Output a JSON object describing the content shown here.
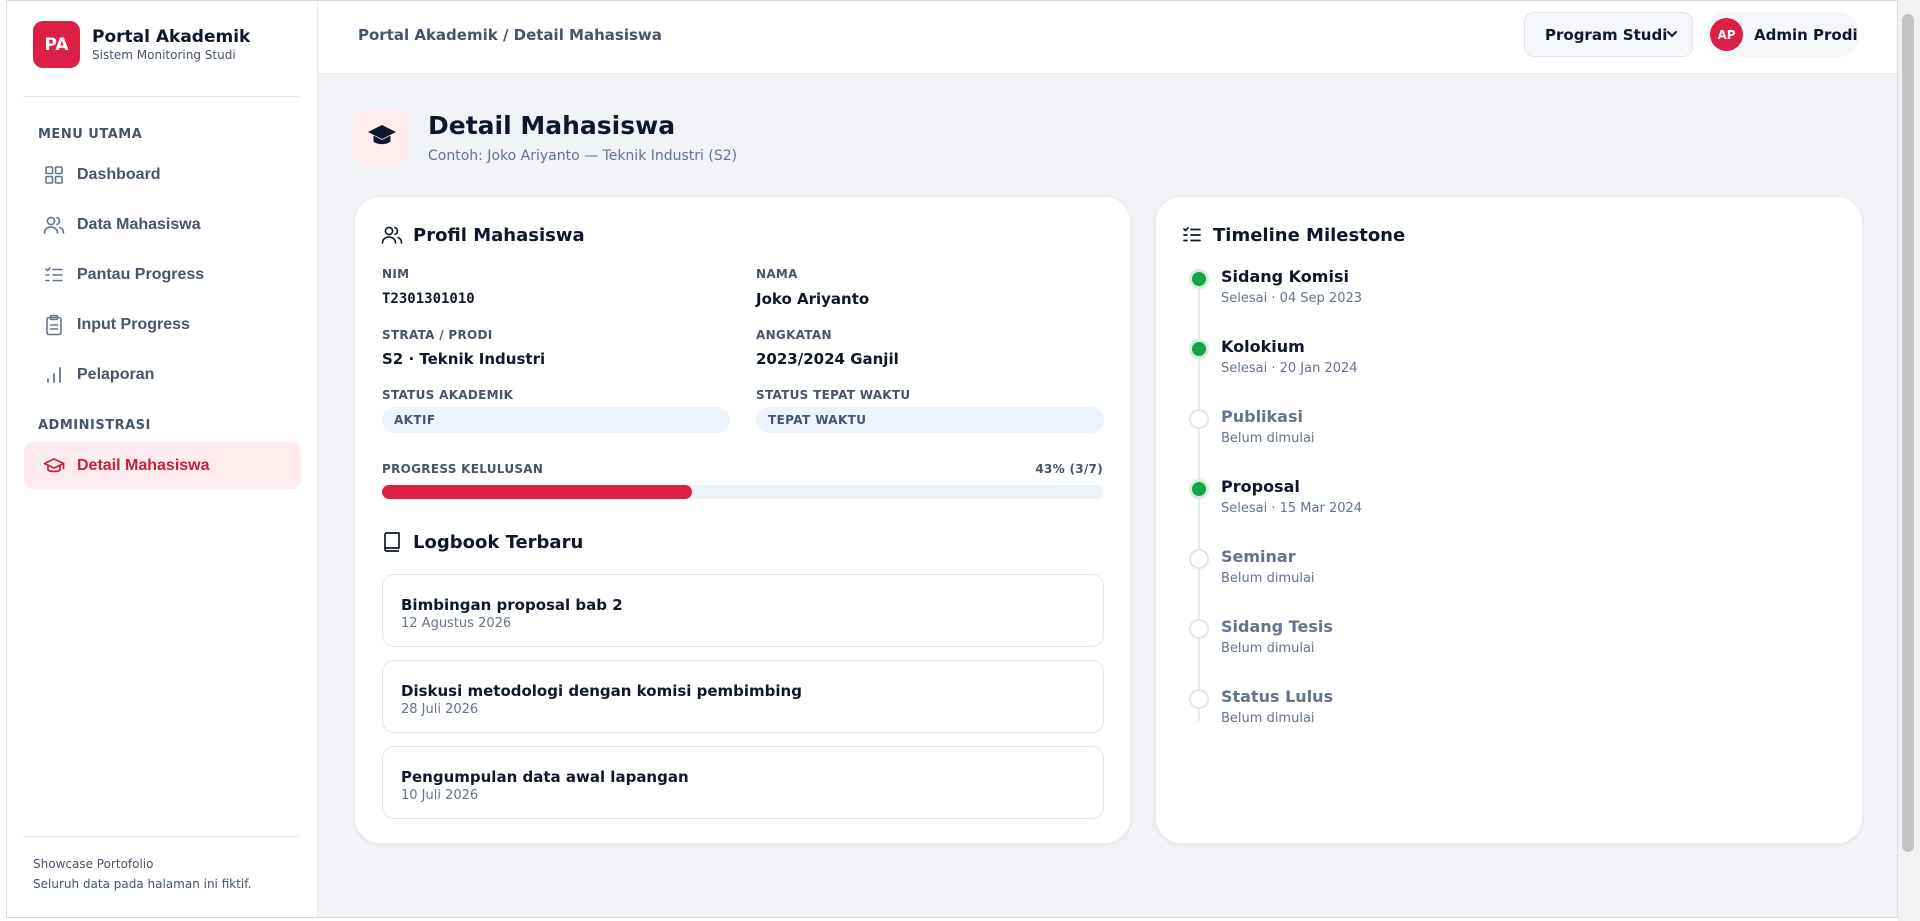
{
  "brand": {
    "logo_text": "PA",
    "title": "Portal Akademik",
    "subtitle": "Sistem Monitoring Studi",
    "color": "#dc2044"
  },
  "sidebar": {
    "section_main": "MENU UTAMA",
    "items": [
      {
        "label": "Dashboard",
        "icon": "grid-icon"
      },
      {
        "label": "Data Mahasiswa",
        "icon": "users-icon"
      },
      {
        "label": "Pantau Progress",
        "icon": "list-check-icon"
      },
      {
        "label": "Input Progress",
        "icon": "clipboard-icon"
      },
      {
        "label": "Pelaporan",
        "icon": "bar-chart-icon"
      }
    ],
    "section_admin": "ADMINISTRASI",
    "admin_items": [
      {
        "label": "Detail Mahasiswa",
        "icon": "graduation-cap-icon",
        "active": true
      }
    ],
    "footer": {
      "line1": "Showcase Portofolio",
      "line2": "Seluruh data pada halaman ini fiktif."
    }
  },
  "header": {
    "breadcrumb": "Portal Akademik / Detail Mahasiswa",
    "prodi_select": "Program Studi",
    "user": {
      "initials": "AP",
      "name": "Admin Prodi"
    }
  },
  "page": {
    "title": "Detail Mahasiswa",
    "subtitle": "Contoh: Joko Ariyanto — Teknik Industri (S2)"
  },
  "profile": {
    "heading": "Profil Mahasiswa",
    "nim_label": "NIM",
    "nim": "T2301301010",
    "nama_label": "NAMA",
    "nama": "Joko Ariyanto",
    "strata_label": "STRATA / PRODI",
    "strata": "S2 · Teknik Industri",
    "angkatan_label": "ANGKATAN",
    "angkatan": "2023/2024 Ganjil",
    "status_akademik_label": "STATUS AKADEMIK",
    "status_akademik": "AKTIF",
    "status_tepat_label": "STATUS TEPAT WAKTU",
    "status_tepat": "TEPAT WAKTU",
    "progress_label": "PROGRESS KELULUSAN",
    "progress_text": "43% (3/7)",
    "progress_value": 0.43
  },
  "logbook": {
    "heading": "Logbook Terbaru",
    "items": [
      {
        "title": "Bimbingan proposal bab 2",
        "date": "12 Agustus 2026"
      },
      {
        "title": "Diskusi metodologi dengan komisi pembimbing",
        "date": "28 Juli 2026"
      },
      {
        "title": "Pengumpulan data awal lapangan",
        "date": "10 Juli 2026"
      }
    ]
  },
  "timeline": {
    "heading": "Timeline Milestone",
    "items": [
      {
        "title": "Sidang Komisi",
        "sub": "Selesai · 04 Sep 2023",
        "done": true
      },
      {
        "title": "Kolokium",
        "sub": "Selesai · 20 Jan 2024",
        "done": true
      },
      {
        "title": "Publikasi",
        "sub": "Belum dimulai",
        "done": false
      },
      {
        "title": "Proposal",
        "sub": "Selesai · 15 Mar 2024",
        "done": true
      },
      {
        "title": "Seminar",
        "sub": "Belum dimulai",
        "done": false
      },
      {
        "title": "Sidang Tesis",
        "sub": "Belum dimulai",
        "done": false
      },
      {
        "title": "Status Lulus",
        "sub": "Belum dimulai",
        "done": false
      }
    ]
  },
  "colors": {
    "accent": "#dc2044",
    "done": "#16a34a"
  }
}
